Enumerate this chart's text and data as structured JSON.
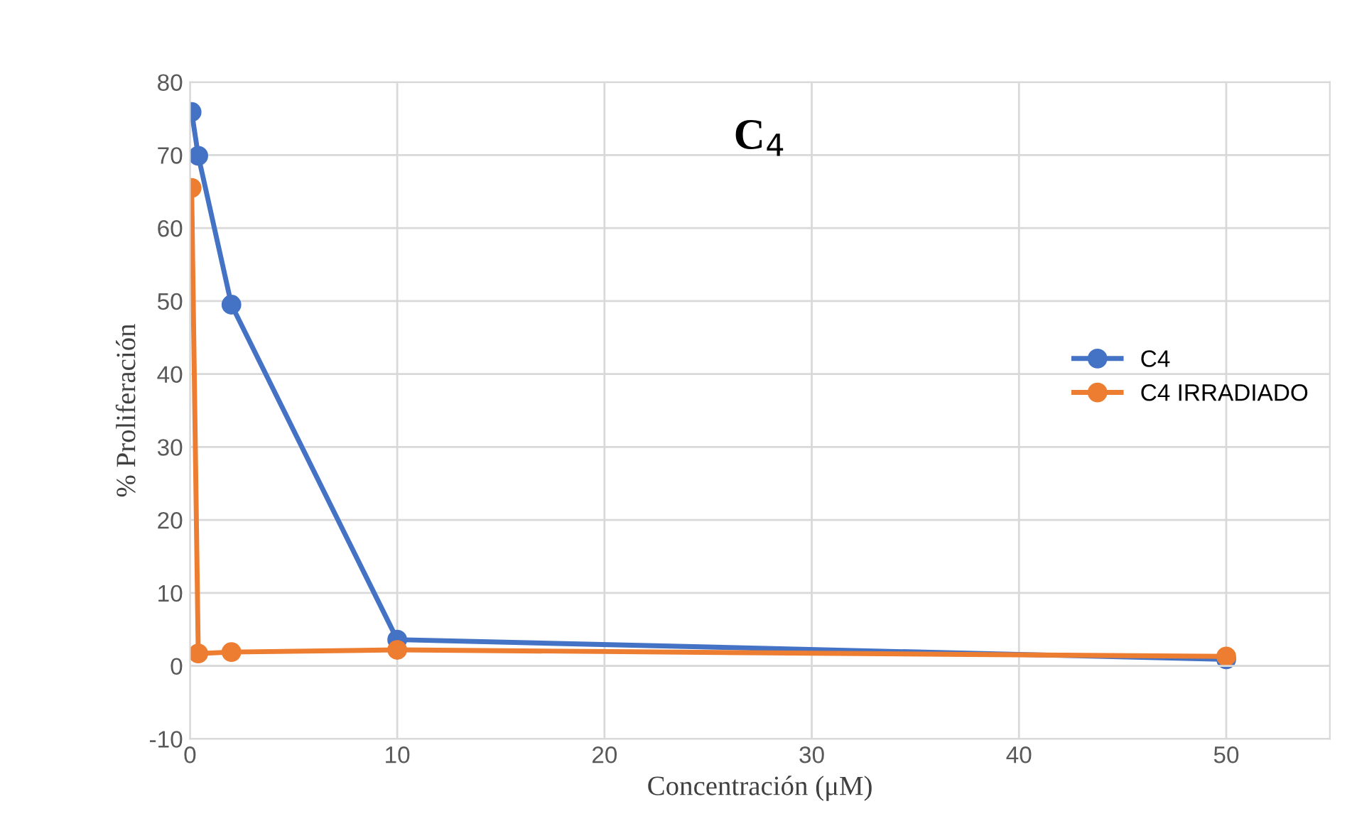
{
  "chart_data": {
    "type": "line",
    "title": "C$_{4}$",
    "xlabel": "Concentración (μM)",
    "ylabel": "% Proliferación",
    "x": [
      0.08,
      0.4,
      2,
      10,
      50
    ],
    "series": [
      {
        "name": "C4",
        "color": "#4472c4",
        "values": [
          75.9,
          69.9,
          49.5,
          3.6,
          0.9
        ]
      },
      {
        "name": "C4 IRRADIADO",
        "color": "#ed7d31",
        "values": [
          65.5,
          1.7,
          1.9,
          2.2,
          1.3
        ]
      }
    ],
    "xlim": [
      0,
      55
    ],
    "xticks": [
      0,
      10,
      20,
      30,
      40,
      50
    ],
    "ylim": [
      -10,
      80
    ],
    "yticks": [
      -10,
      0,
      10,
      20,
      30,
      40,
      50,
      60,
      70,
      80
    ],
    "grid": true,
    "legend": "right",
    "marker": "circle",
    "line_style": "solid"
  }
}
